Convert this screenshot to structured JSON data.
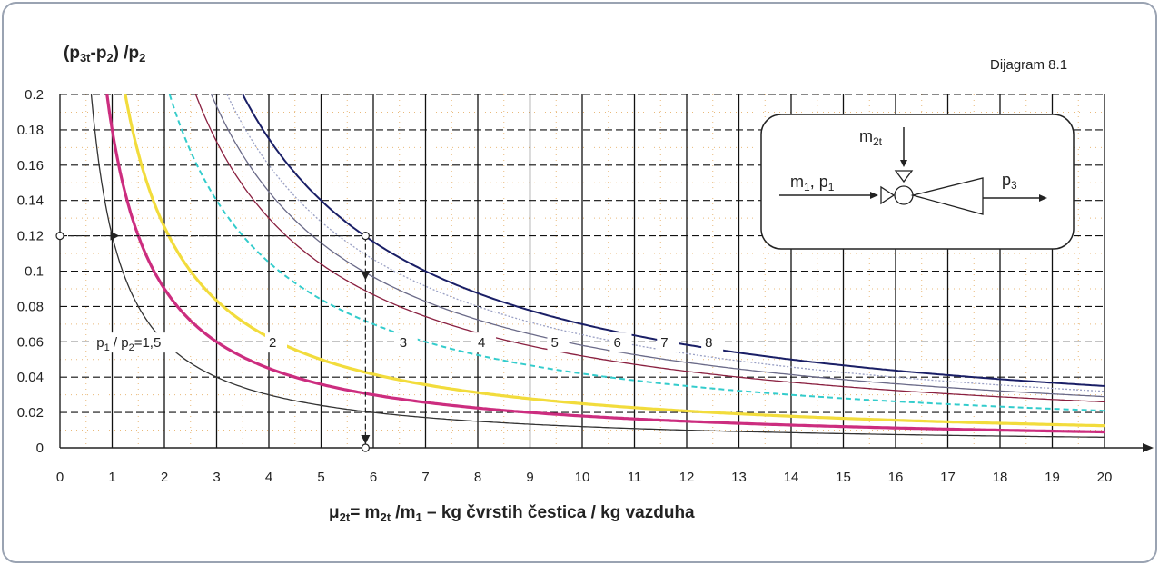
{
  "chart_data": {
    "type": "line",
    "title": "Dijagram 8.1",
    "ylabel_parts": {
      "a": "(p",
      "a_sub": "3t",
      "b": "-p",
      "b_sub": "2",
      "c": ") /p",
      "c_sub": "2"
    },
    "xlabel_parts": {
      "mu": "μ",
      "mu_sub": "2t",
      "eq": "= m",
      "m_sub": "2t",
      "slash": " /m",
      "m1_sub": "1",
      "rest": " – kg čvrstih čestica / kg vazduha"
    },
    "xlim": [
      0,
      20
    ],
    "ylim": [
      0,
      0.2
    ],
    "x_ticks": [
      "0",
      "1",
      "2",
      "3",
      "4",
      "5",
      "6",
      "7",
      "8",
      "9",
      "10",
      "11",
      "12",
      "13",
      "14",
      "15",
      "16",
      "17",
      "18",
      "19",
      "20"
    ],
    "y_ticks": [
      "0",
      "0.02",
      "0.04",
      "0.06",
      "0.08",
      "0.1",
      "0.12",
      "0.14",
      "0.16",
      "0.18",
      "0.2"
    ],
    "grid": true,
    "series": [
      {
        "name": "1,5",
        "ratio": 1.5,
        "k": 0.12,
        "color": "#333333"
      },
      {
        "name": "2",
        "ratio": 2,
        "k": 0.18,
        "color": "#cc2d7f"
      },
      {
        "name": "3",
        "ratio": 3,
        "k": 0.25,
        "color": "#f2dc3c"
      },
      {
        "name": "4",
        "ratio": 4,
        "k": 0.42,
        "color": "#33cccc"
      },
      {
        "name": "5",
        "ratio": 5,
        "k": 0.52,
        "color": "#8a2040"
      },
      {
        "name": "6",
        "ratio": 6,
        "k": 0.58,
        "color": "#6a6a88"
      },
      {
        "name": "7",
        "ratio": 7,
        "k": 0.64,
        "color": "#9aa0c4"
      },
      {
        "name": "8",
        "ratio": 8,
        "k": 0.7,
        "color": "#1a1f66"
      }
    ],
    "curve_labels": [
      {
        "text": "p",
        "sub": "1",
        "text2": " / p",
        "sub2": "2",
        "text3": "=1,5",
        "x": 0.7,
        "y": 0.057
      },
      {
        "text": "2",
        "x": 4.0,
        "y": 0.057
      },
      {
        "text": "3",
        "x": 6.5,
        "y": 0.057
      },
      {
        "text": "4",
        "x": 8.0,
        "y": 0.057
      },
      {
        "text": "5",
        "x": 9.4,
        "y": 0.057
      },
      {
        "text": "6",
        "x": 10.6,
        "y": 0.057
      },
      {
        "text": "7",
        "x": 11.5,
        "y": 0.057
      },
      {
        "text": "8",
        "x": 12.35,
        "y": 0.057
      }
    ],
    "example": {
      "x": 5.85,
      "y": 0.12
    },
    "schematic": {
      "m2t": "m",
      "m2t_sub": "2t",
      "m1p1": "m",
      "m1p1_sub": "1",
      "m1p1_mid": ", p",
      "m1p1_sub2": "1",
      "p3": "p",
      "p3_sub": "3"
    }
  }
}
